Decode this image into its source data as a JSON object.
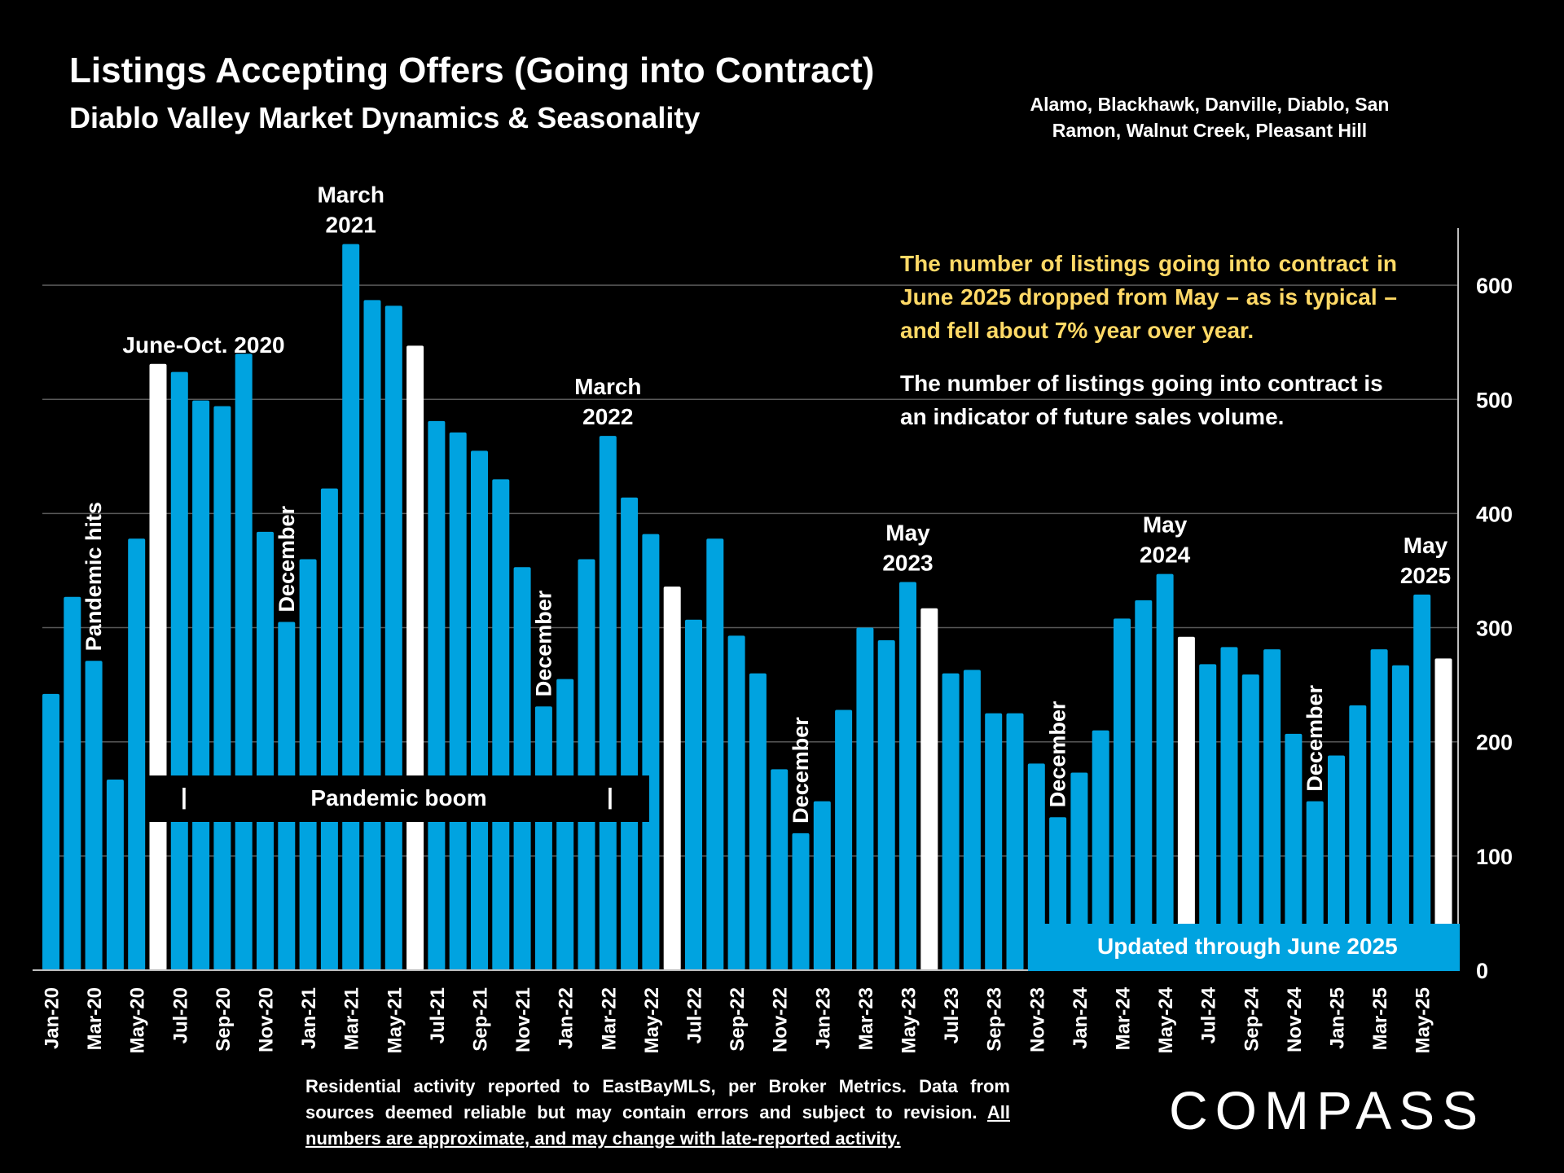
{
  "title": "Listings Accepting Offers (Going into Contract)",
  "subtitle": "Diablo Valley Market Dynamics & Seasonality",
  "region": "Alamo, Blackhawk, Danville, Diablo, San Ramon, Walnut Creek, Pleasant Hill",
  "note_yellow": "The number of listings going into contract in June 2025 dropped from May – as is typical – and fell about 7% year over year.",
  "note_white": "The number of listings going into contract is an indicator of future sales volume.",
  "boom_label": "Pandemic boom",
  "boom_pipe": "|",
  "updated_label": "Updated through June 2025",
  "footnote_plain": "Residential activity reported to EastBayMLS, per Broker Metrics. Data from sources deemed reliable but may contain errors and subject to revision.",
  "footnote_underlined": "All numbers are approximate, and may change with late-reported activity.",
  "logo": "COMPASS",
  "colors": {
    "bar": "#00a3e0",
    "highlight": "#ffffff",
    "note": "#ffd966",
    "background": "#000000"
  },
  "chart_data": {
    "type": "bar",
    "x": [
      "Jan-20",
      "Feb-20",
      "Mar-20",
      "Apr-20",
      "May-20",
      "Jun-20",
      "Jul-20",
      "Aug-20",
      "Sep-20",
      "Oct-20",
      "Nov-20",
      "Dec-20",
      "Jan-21",
      "Feb-21",
      "Mar-21",
      "Apr-21",
      "May-21",
      "Jun-21",
      "Jul-21",
      "Aug-21",
      "Sep-21",
      "Oct-21",
      "Nov-21",
      "Dec-21",
      "Jan-22",
      "Feb-22",
      "Mar-22",
      "Apr-22",
      "May-22",
      "Jun-22",
      "Jul-22",
      "Aug-22",
      "Sep-22",
      "Oct-22",
      "Nov-22",
      "Dec-22",
      "Jan-23",
      "Feb-23",
      "Mar-23",
      "Apr-23",
      "May-23",
      "Jun-23",
      "Jul-23",
      "Aug-23",
      "Sep-23",
      "Oct-23",
      "Nov-23",
      "Dec-23",
      "Jan-24",
      "Feb-24",
      "Mar-24",
      "Apr-24",
      "May-24",
      "Jun-24",
      "Jul-24",
      "Aug-24",
      "Sep-24",
      "Oct-24",
      "Nov-24",
      "Dec-24",
      "Jan-25",
      "Feb-25",
      "Mar-25",
      "Apr-25",
      "May-25",
      "Jun-25"
    ],
    "values": [
      242,
      327,
      271,
      167,
      378,
      531,
      524,
      499,
      494,
      540,
      384,
      305,
      360,
      422,
      636,
      587,
      582,
      547,
      481,
      471,
      455,
      430,
      353,
      231,
      255,
      360,
      468,
      414,
      382,
      336,
      307,
      378,
      293,
      260,
      176,
      120,
      148,
      228,
      300,
      289,
      340,
      317,
      260,
      263,
      225,
      225,
      181,
      134,
      173,
      210,
      308,
      324,
      347,
      292,
      268,
      283,
      259,
      281,
      207,
      148,
      188,
      232,
      281,
      267,
      329,
      273
    ],
    "highlight": [
      "Jun-20",
      "Jun-21",
      "Jun-22",
      "Jun-23",
      "Jun-24",
      "Jun-25"
    ],
    "x_tick_labels": [
      "Jan-20",
      "Mar-20",
      "May-20",
      "Jul-20",
      "Sep-20",
      "Nov-20",
      "Jan-21",
      "Mar-21",
      "May-21",
      "Jul-21",
      "Sep-21",
      "Nov-21",
      "Jan-22",
      "Mar-22",
      "May-22",
      "Jul-22",
      "Sep-22",
      "Nov-22",
      "Jan-23",
      "Mar-23",
      "May-23",
      "Jul-23",
      "Sep-23",
      "Nov-23",
      "Jan-24",
      "Mar-24",
      "May-24",
      "Jul-24",
      "Sep-24",
      "Nov-24",
      "Jan-25",
      "Mar-25",
      "May-25"
    ],
    "y_ticks": [
      0,
      100,
      200,
      300,
      400,
      500,
      600
    ],
    "ylim": [
      0,
      650
    ],
    "y_axis_side": "right",
    "grid": true,
    "annotations": [
      {
        "at": "Mar-20",
        "text": "Pandemic hits",
        "vertical": true
      },
      {
        "at": "Jun-20",
        "text": "June-Oct. 2020",
        "vertical": false
      },
      {
        "at": "Dec-20",
        "text": "December",
        "vertical": true
      },
      {
        "at": "Mar-21",
        "text": "March\n2021",
        "vertical": false
      },
      {
        "at": "Dec-21",
        "text": "December",
        "vertical": true
      },
      {
        "at": "Mar-22",
        "text": "March\n2022",
        "vertical": false
      },
      {
        "at": "Dec-22",
        "text": "December",
        "vertical": true
      },
      {
        "at": "May-23",
        "text": "May\n2023",
        "vertical": false
      },
      {
        "at": "Dec-23",
        "text": "December",
        "vertical": true
      },
      {
        "at": "May-24",
        "text": "May\n2024",
        "vertical": false
      },
      {
        "at": "Dec-24",
        "text": "December",
        "vertical": true
      },
      {
        "at": "May-25",
        "text": "May\n2025",
        "vertical": false
      }
    ]
  }
}
